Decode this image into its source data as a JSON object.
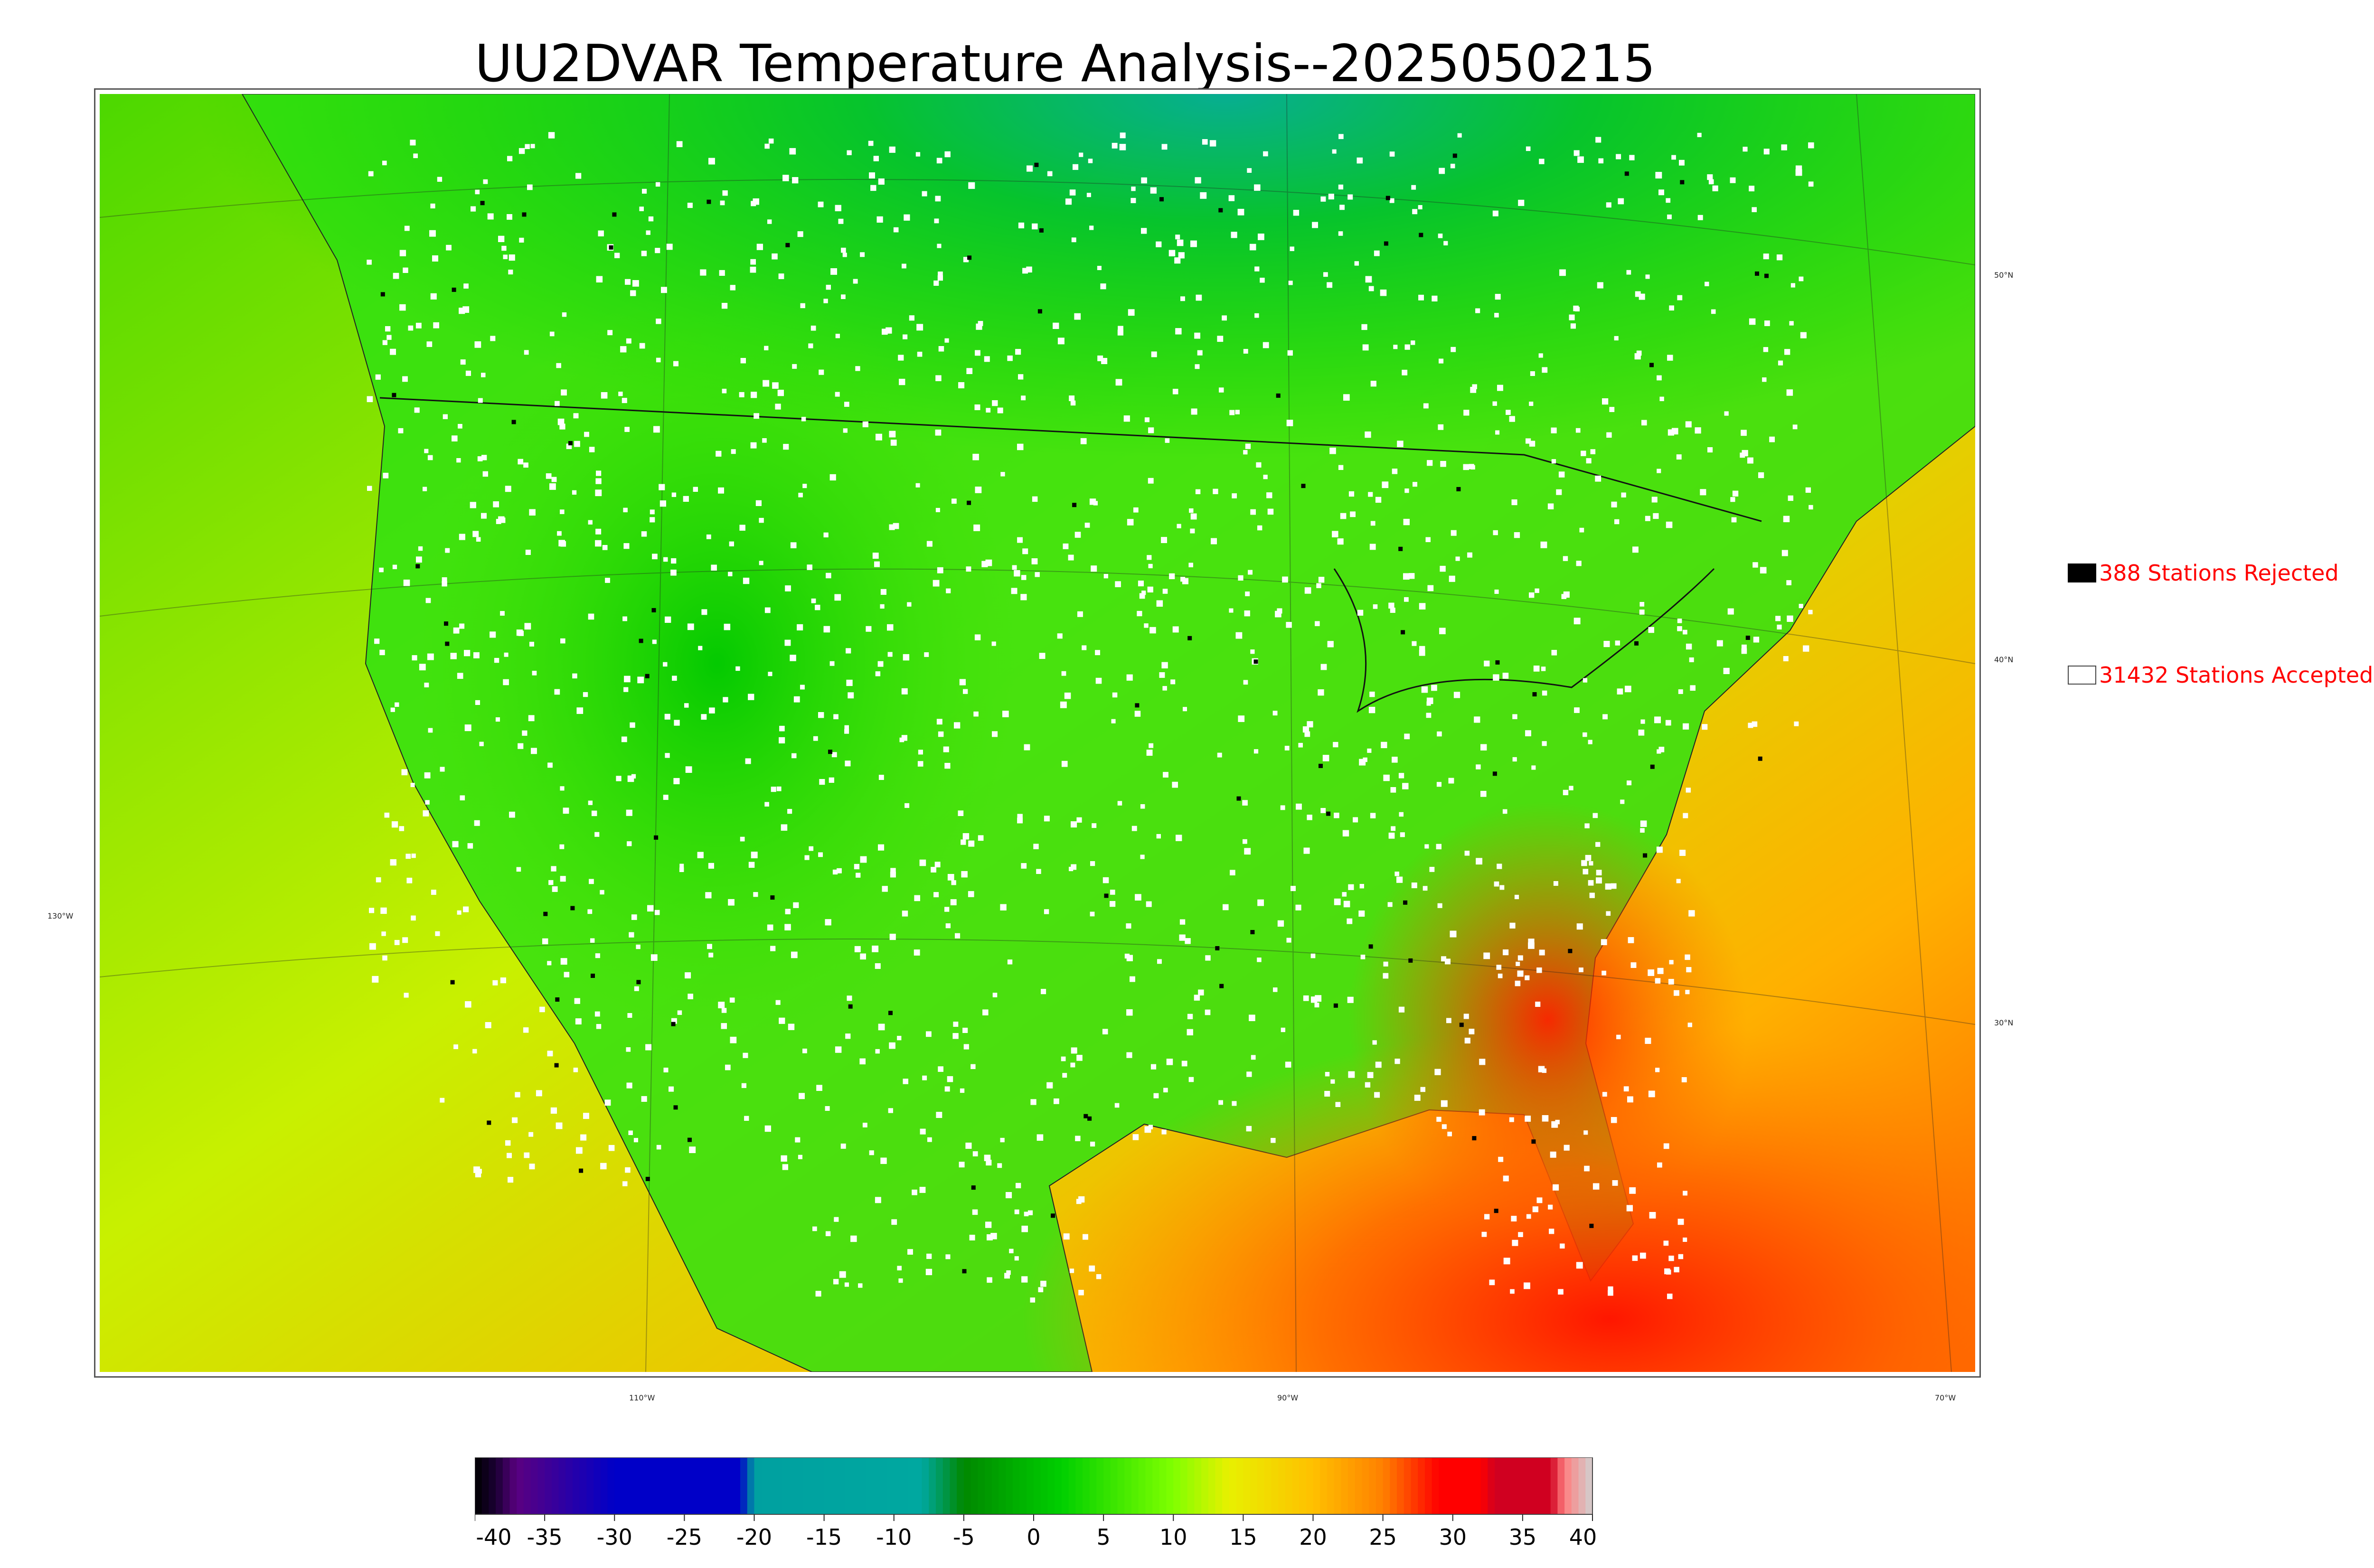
{
  "title": "UU2DVAR Temperature Analysis--2025050215",
  "graticule": {
    "lon_labels": [
      "130°W",
      "110°W",
      "90°W",
      "70°W"
    ],
    "lat_labels": [
      "50°N",
      "40°N",
      "30°N"
    ]
  },
  "legend": {
    "rejected": {
      "count_label": "388 Stations Rejected",
      "color": "#000000"
    },
    "accepted": {
      "count_label": "31432 Stations Accepted",
      "color": "#ffffff"
    }
  },
  "colorbar": {
    "min": -40,
    "max": 40,
    "ticks": [
      "-40",
      "-35",
      "-30",
      "-25",
      "-20",
      "-15",
      "-10",
      "-5",
      "0",
      "5",
      "10",
      "15",
      "20",
      "25",
      "30",
      "35",
      "40"
    ],
    "stops": [
      {
        "value": -40,
        "color": "#000000"
      },
      {
        "value": -38.5,
        "color": "#1a0033"
      },
      {
        "value": -37,
        "color": "#5a0080"
      },
      {
        "value": -30,
        "color": "#0000c8"
      },
      {
        "value": -21,
        "color": "#0000c8"
      },
      {
        "value": -20,
        "color": "#00a0a0"
      },
      {
        "value": -8,
        "color": "#00a8a0"
      },
      {
        "value": -5,
        "color": "#008800"
      },
      {
        "value": 2,
        "color": "#00d000"
      },
      {
        "value": 10,
        "color": "#80ff00"
      },
      {
        "value": 14,
        "color": "#e8f000"
      },
      {
        "value": 20,
        "color": "#ffc000"
      },
      {
        "value": 25,
        "color": "#ff8000"
      },
      {
        "value": 29,
        "color": "#ff0000"
      },
      {
        "value": 32,
        "color": "#ff0000"
      },
      {
        "value": 33,
        "color": "#d00020"
      },
      {
        "value": 37,
        "color": "#d00020"
      },
      {
        "value": 38,
        "color": "#ff8080"
      },
      {
        "value": 40,
        "color": "#d0d0d0"
      }
    ]
  }
}
